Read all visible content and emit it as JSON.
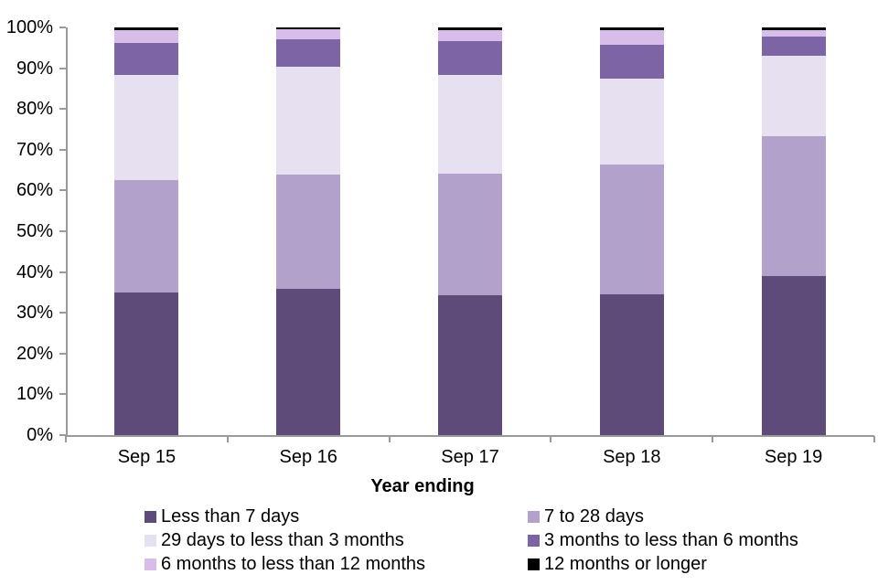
{
  "chart_data": {
    "type": "bar",
    "variant": "100-percent-stacked-column",
    "title": "",
    "xlabel": "Year ending",
    "ylabel": "",
    "ylim": [
      0,
      100
    ],
    "grid": false,
    "legend_position": "bottom",
    "axis_color": "#9a9a9a",
    "text_color": "#000000",
    "background_color": "#ffffff",
    "y_ticks": [
      "0%",
      "10%",
      "20%",
      "30%",
      "40%",
      "50%",
      "60%",
      "70%",
      "80%",
      "90%",
      "100%"
    ],
    "categories": [
      "Sep 15",
      "Sep 16",
      "Sep 17",
      "Sep 18",
      "Sep 19"
    ],
    "series": [
      {
        "name": "Less than 7 days",
        "color": "#5f4b79",
        "values": [
          35.0,
          35.9,
          34.2,
          34.6,
          39.0
        ]
      },
      {
        "name": "7 to 28 days",
        "color": "#b2a1cb",
        "values": [
          27.5,
          27.9,
          30.0,
          31.8,
          34.3
        ]
      },
      {
        "name": "29 days to less than 3 months",
        "color": "#e6e0f0",
        "values": [
          25.8,
          26.5,
          24.2,
          21.1,
          19.8
        ]
      },
      {
        "name": "3 months to less than 6 months",
        "color": "#7d64a4",
        "values": [
          8.0,
          6.9,
          8.2,
          8.2,
          4.7
        ]
      },
      {
        "name": "6 months to less than 12 months",
        "color": "#d8bce9",
        "values": [
          3.0,
          2.3,
          2.8,
          3.6,
          1.6
        ]
      },
      {
        "name": "12 months or longer",
        "color": "#000000",
        "values": [
          0.7,
          0.5,
          0.6,
          0.7,
          0.6
        ]
      }
    ]
  },
  "layout_note": "stacking order bottom-to-top follows series array order"
}
